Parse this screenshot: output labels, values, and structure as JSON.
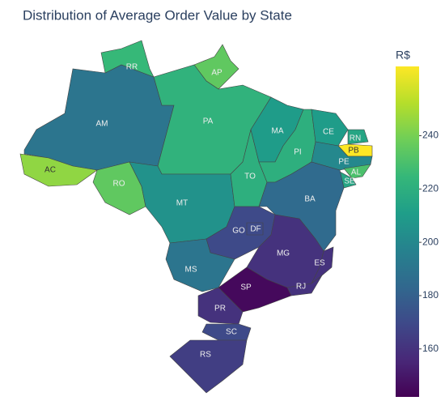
{
  "chart_data": {
    "type": "choropleth",
    "title": "Distribution of Average Order Value by State",
    "colorbar_title": "R$",
    "colorscale": "viridis",
    "locations": [
      "AM",
      "RR",
      "AP",
      "PA",
      "AC",
      "RO",
      "MT",
      "TO",
      "MA",
      "PI",
      "CE",
      "RN",
      "PB",
      "PE",
      "AL",
      "SE",
      "BA",
      "GO",
      "DF",
      "MG",
      "ES",
      "RJ",
      "SP",
      "MS",
      "PR",
      "SC",
      "RS"
    ],
    "values": [
      190,
      225,
      235,
      222,
      245,
      235,
      205,
      220,
      210,
      220,
      210,
      215,
      266,
      200,
      230,
      215,
      185,
      170,
      170,
      160,
      160,
      160,
      145,
      190,
      160,
      170,
      165
    ],
    "zlim": [
      142,
      266
    ],
    "zticks": [
      160,
      180,
      200,
      220,
      240
    ]
  }
}
